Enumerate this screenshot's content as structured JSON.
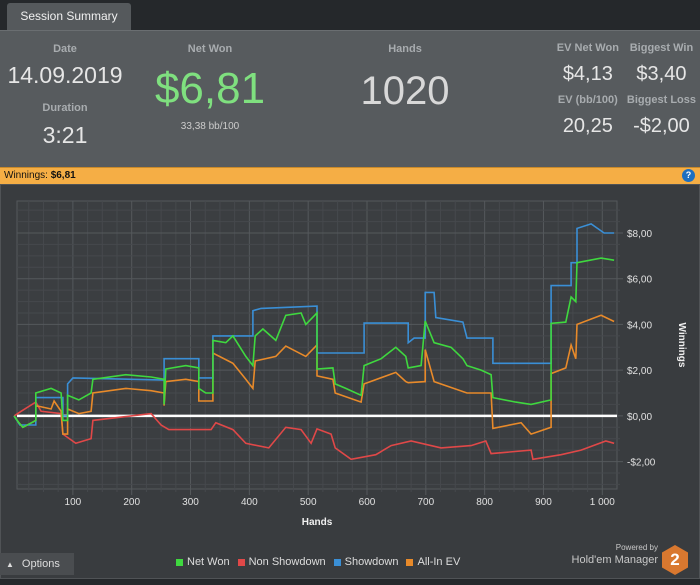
{
  "tab": {
    "label": "Session Summary"
  },
  "summary": {
    "date_label": "Date",
    "date": "14.09.2019",
    "duration_label": "Duration",
    "duration": "3:21",
    "net_won_label": "Net Won",
    "net_won": "$6,81",
    "bb100": "33,38 bb/100",
    "hands_label": "Hands",
    "hands": "1020",
    "ev_net_won_label": "EV Net Won",
    "ev_net_won": "$4,13",
    "biggest_win_label": "Biggest Win",
    "biggest_win": "$3,40",
    "ev_bb100_label": "EV (bb/100)",
    "ev_bb100": "20,25",
    "biggest_loss_label": "Biggest Loss",
    "biggest_loss": "-$2,00"
  },
  "winnings_bar": {
    "label": "Winnings:",
    "value": "$6,81",
    "help_icon": "?"
  },
  "options": {
    "label": "Options"
  },
  "brand": {
    "powered": "Powered by",
    "name": "Hold'em Manager",
    "badge": "2"
  },
  "chart_data": {
    "type": "line",
    "xlabel": "Hands",
    "ylabel": "Winnings",
    "xlim": [
      5,
      1025
    ],
    "ylim": [
      -3.2,
      9.4
    ],
    "xticks": [
      100,
      200,
      300,
      400,
      500,
      600,
      700,
      800,
      900,
      1000
    ],
    "xtick_labels": [
      "100",
      "200",
      "300",
      "400",
      "500",
      "600",
      "700",
      "800",
      "900",
      "1 000"
    ],
    "yticks": [
      -2,
      0,
      2,
      4,
      6,
      8
    ],
    "ytick_labels": [
      "-$2,00",
      "$0,00",
      "$2,00",
      "$4,00",
      "$6,00",
      "$8,00"
    ],
    "legend_position": "bottom",
    "series": [
      {
        "name": "Net Won",
        "color": "#3fd83f",
        "points": [
          [
            0,
            0
          ],
          [
            8,
            -0.3
          ],
          [
            15,
            -0.5
          ],
          [
            30,
            -0.3
          ],
          [
            37,
            -0.2
          ],
          [
            37,
            1.0
          ],
          [
            63,
            1.2
          ],
          [
            80,
            1.0
          ],
          [
            83,
            -0.2
          ],
          [
            91,
            -0.2
          ],
          [
            91,
            0.9
          ],
          [
            110,
            0.7
          ],
          [
            131,
            1.0
          ],
          [
            134,
            1.6
          ],
          [
            190,
            1.8
          ],
          [
            233,
            1.7
          ],
          [
            255,
            1.6
          ],
          [
            255,
            0.5
          ],
          [
            258,
            2.05
          ],
          [
            292,
            2.2
          ],
          [
            314,
            2.1
          ],
          [
            314,
            1.2
          ],
          [
            326,
            1.0
          ],
          [
            338,
            1.0
          ],
          [
            338,
            3.3
          ],
          [
            360,
            3.2
          ],
          [
            372,
            3.5
          ],
          [
            394,
            2.6
          ],
          [
            406,
            2.2
          ],
          [
            410,
            3.5
          ],
          [
            423,
            3.8
          ],
          [
            445,
            3.3
          ],
          [
            462,
            4.4
          ],
          [
            488,
            4.5
          ],
          [
            496,
            4.0
          ],
          [
            515,
            4.5
          ],
          [
            515,
            2.05
          ],
          [
            542,
            2.1
          ],
          [
            546,
            1.4
          ],
          [
            564,
            1.2
          ],
          [
            590,
            0.9
          ],
          [
            595,
            2.2
          ],
          [
            624,
            2.5
          ],
          [
            649,
            3.0
          ],
          [
            666,
            2.6
          ],
          [
            670,
            2.1
          ],
          [
            692,
            2.2
          ],
          [
            699,
            4.15
          ],
          [
            714,
            3.2
          ],
          [
            743,
            3.0
          ],
          [
            763,
            2.5
          ],
          [
            770,
            2.2
          ],
          [
            794,
            2.0
          ],
          [
            811,
            1.8
          ],
          [
            814,
            0.8
          ],
          [
            853,
            0.6
          ],
          [
            879,
            0.5
          ],
          [
            913,
            0.7
          ],
          [
            913,
            4.05
          ],
          [
            938,
            4.1
          ],
          [
            947,
            5.2
          ],
          [
            955,
            5.0
          ],
          [
            957,
            6.7
          ],
          [
            998,
            6.9
          ],
          [
            1020,
            6.81
          ]
        ]
      },
      {
        "name": "Non Showdown",
        "color": "#e04848",
        "points": [
          [
            0,
            0
          ],
          [
            12,
            0.2
          ],
          [
            37,
            0.6
          ],
          [
            46,
            0.2
          ],
          [
            80,
            0.1
          ],
          [
            83,
            -0.8
          ],
          [
            105,
            -1.2
          ],
          [
            131,
            -1.0
          ],
          [
            134,
            -0.2
          ],
          [
            199,
            0.0
          ],
          [
            233,
            0.1
          ],
          [
            250,
            -0.4
          ],
          [
            263,
            -0.6
          ],
          [
            284,
            -0.6
          ],
          [
            335,
            -0.6
          ],
          [
            343,
            -0.3
          ],
          [
            372,
            -0.6
          ],
          [
            394,
            -1.2
          ],
          [
            433,
            -1.4
          ],
          [
            462,
            -0.5
          ],
          [
            488,
            -0.6
          ],
          [
            505,
            -1.2
          ],
          [
            515,
            -0.57
          ],
          [
            539,
            -0.8
          ],
          [
            546,
            -1.4
          ],
          [
            573,
            -1.9
          ],
          [
            615,
            -1.7
          ],
          [
            641,
            -1.3
          ],
          [
            675,
            -1.1
          ],
          [
            726,
            -1.4
          ],
          [
            777,
            -1.3
          ],
          [
            802,
            -1.1
          ],
          [
            811,
            -1.65
          ],
          [
            879,
            -1.5
          ],
          [
            882,
            -1.9
          ],
          [
            930,
            -1.7
          ],
          [
            964,
            -1.5
          ],
          [
            1006,
            -1.1
          ],
          [
            1020,
            -1.2
          ]
        ]
      },
      {
        "name": "Showdown",
        "color": "#3a8fd6",
        "points": [
          [
            0,
            0
          ],
          [
            10,
            -0.4
          ],
          [
            37,
            -0.4
          ],
          [
            37,
            0.8
          ],
          [
            83,
            0.8
          ],
          [
            83,
            0
          ],
          [
            91,
            0
          ],
          [
            91,
            1.4
          ],
          [
            100,
            1.66
          ],
          [
            255,
            1.57
          ],
          [
            255,
            2.5
          ],
          [
            314,
            2.5
          ],
          [
            314,
            1.66
          ],
          [
            338,
            1.66
          ],
          [
            338,
            3.5
          ],
          [
            406,
            3.5
          ],
          [
            406,
            4.6
          ],
          [
            420,
            4.7
          ],
          [
            515,
            4.8
          ],
          [
            515,
            2.75
          ],
          [
            595,
            2.75
          ],
          [
            595,
            4.06
          ],
          [
            670,
            4.06
          ],
          [
            670,
            3.2
          ],
          [
            680,
            3.4
          ],
          [
            699,
            3.4
          ],
          [
            699,
            5.4
          ],
          [
            714,
            5.4
          ],
          [
            717,
            4.3
          ],
          [
            763,
            4.1
          ],
          [
            770,
            3.4
          ],
          [
            814,
            3.4
          ],
          [
            814,
            2.3
          ],
          [
            913,
            2.3
          ],
          [
            913,
            5.7
          ],
          [
            947,
            5.7
          ],
          [
            947,
            6.7
          ],
          [
            957,
            6.7
          ],
          [
            957,
            8.2
          ],
          [
            981,
            8.4
          ],
          [
            1003,
            8.0
          ],
          [
            1020,
            8.0
          ]
        ]
      },
      {
        "name": "All-In EV",
        "color": "#e88a2a",
        "points": [
          [
            0,
            0
          ],
          [
            8,
            -0.3
          ],
          [
            15,
            -0.5
          ],
          [
            30,
            -0.3
          ],
          [
            37,
            -0.2
          ],
          [
            37,
            0.45
          ],
          [
            63,
            0.3
          ],
          [
            68,
            0.65
          ],
          [
            80,
            0.2
          ],
          [
            83,
            -0.8
          ],
          [
            91,
            -0.8
          ],
          [
            91,
            0.3
          ],
          [
            110,
            0.1
          ],
          [
            131,
            0.2
          ],
          [
            134,
            1.0
          ],
          [
            190,
            1.2
          ],
          [
            233,
            1.1
          ],
          [
            255,
            1.0
          ],
          [
            255,
            0.45
          ],
          [
            258,
            1.5
          ],
          [
            292,
            1.6
          ],
          [
            314,
            1.5
          ],
          [
            314,
            0.65
          ],
          [
            338,
            0.65
          ],
          [
            338,
            2.75
          ],
          [
            372,
            2.3
          ],
          [
            394,
            1.6
          ],
          [
            406,
            1.2
          ],
          [
            410,
            2.4
          ],
          [
            445,
            2.6
          ],
          [
            462,
            3.05
          ],
          [
            496,
            2.6
          ],
          [
            515,
            3.1
          ],
          [
            515,
            1.75
          ],
          [
            542,
            1.6
          ],
          [
            546,
            1.0
          ],
          [
            590,
            0.6
          ],
          [
            595,
            1.4
          ],
          [
            649,
            1.9
          ],
          [
            666,
            1.5
          ],
          [
            670,
            1.45
          ],
          [
            699,
            1.5
          ],
          [
            699,
            2.9
          ],
          [
            714,
            1.5
          ],
          [
            770,
            1.0
          ],
          [
            811,
            1.0
          ],
          [
            814,
            -0.55
          ],
          [
            862,
            -0.3
          ],
          [
            879,
            -0.8
          ],
          [
            913,
            -0.5
          ],
          [
            913,
            1.85
          ],
          [
            938,
            2.1
          ],
          [
            947,
            3.1
          ],
          [
            955,
            2.5
          ],
          [
            957,
            4.0
          ],
          [
            998,
            4.4
          ],
          [
            1020,
            4.13
          ]
        ]
      }
    ]
  }
}
